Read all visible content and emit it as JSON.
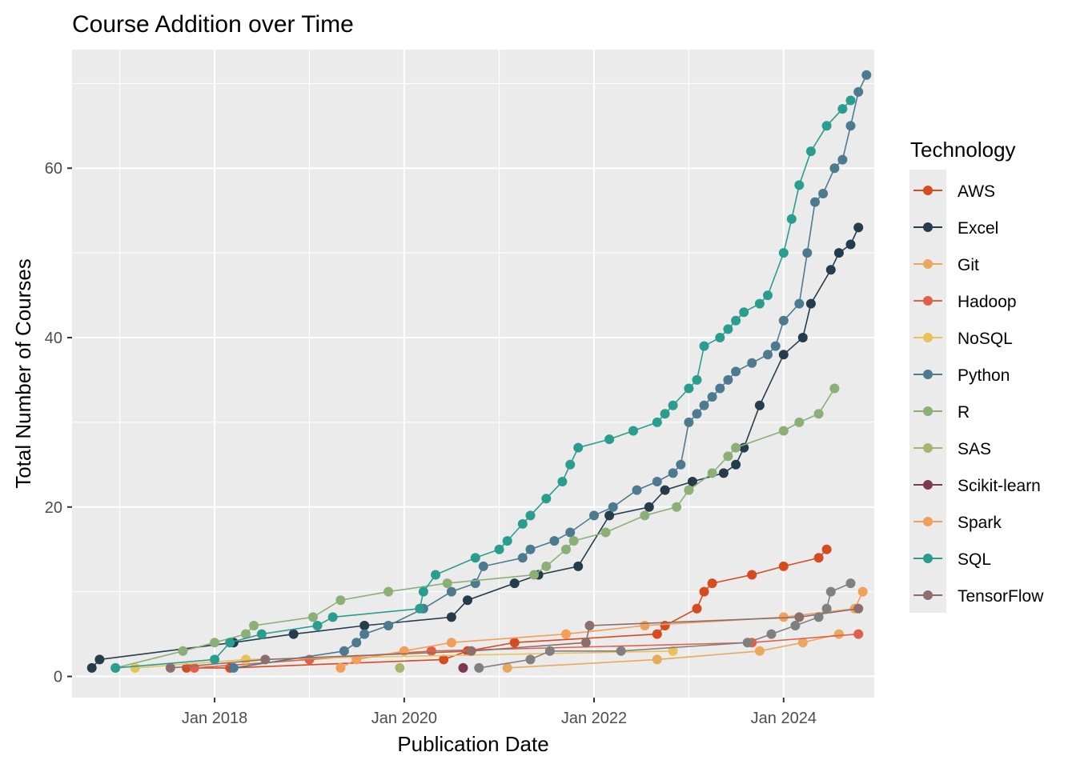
{
  "chart_data": {
    "type": "line",
    "title": "Course Addition over Time",
    "xlabel": "Publication Date",
    "ylabel": "Total Number of Courses",
    "x_axis_type": "date",
    "xlim": [
      "2016-07-01",
      "2024-12-15"
    ],
    "ylim": [
      -2.5,
      74
    ],
    "x_ticks": [
      {
        "date": "2018-01-01",
        "label": "Jan 2018"
      },
      {
        "date": "2020-01-01",
        "label": "Jan 2020"
      },
      {
        "date": "2022-01-01",
        "label": "Jan 2022"
      },
      {
        "date": "2024-01-01",
        "label": "Jan 2024"
      }
    ],
    "x_minor_ticks": [
      "2017-01-01",
      "2019-01-01",
      "2021-01-01",
      "2023-01-01",
      "2025-01-01"
    ],
    "y_ticks": [
      0,
      20,
      40,
      60
    ],
    "y_minor_ticks": [
      10,
      30,
      50,
      70
    ],
    "grid": true,
    "legend_position": "right",
    "legend_title": "Technology",
    "series": [
      {
        "name": "AWS",
        "color": "#D64B1F",
        "points": [
          [
            "2017-09-15",
            1
          ],
          [
            "2018-03-01",
            1
          ],
          [
            "2020-06-01",
            2
          ],
          [
            "2020-09-01",
            3
          ],
          [
            "2021-03-01",
            4
          ],
          [
            "2022-09-01",
            5
          ],
          [
            "2022-10-01",
            6
          ],
          [
            "2023-02-01",
            8
          ],
          [
            "2023-03-01",
            10
          ],
          [
            "2023-04-01",
            11
          ],
          [
            "2023-09-01",
            12
          ],
          [
            "2024-01-01",
            13
          ],
          [
            "2024-05-15",
            14
          ],
          [
            "2024-06-15",
            15
          ]
        ]
      },
      {
        "name": "Excel",
        "color": "#243C4C",
        "points": [
          [
            "2016-09-15",
            1
          ],
          [
            "2016-10-15",
            2
          ],
          [
            "2018-03-15",
            4
          ],
          [
            "2018-11-01",
            5
          ],
          [
            "2019-08-01",
            6
          ],
          [
            "2020-07-01",
            7
          ],
          [
            "2020-09-01",
            9
          ],
          [
            "2021-03-01",
            11
          ],
          [
            "2021-06-01",
            12
          ],
          [
            "2021-11-01",
            13
          ],
          [
            "2022-03-01",
            19
          ],
          [
            "2022-08-01",
            20
          ],
          [
            "2022-10-01",
            22
          ],
          [
            "2023-01-15",
            23
          ],
          [
            "2023-05-15",
            24
          ],
          [
            "2023-07-01",
            25
          ],
          [
            "2023-08-01",
            27
          ],
          [
            "2023-10-01",
            32
          ],
          [
            "2024-01-01",
            38
          ],
          [
            "2024-03-15",
            40
          ],
          [
            "2024-04-15",
            44
          ],
          [
            "2024-07-01",
            48
          ],
          [
            "2024-08-01",
            50
          ],
          [
            "2024-09-15",
            51
          ],
          [
            "2024-10-15",
            53
          ]
        ]
      },
      {
        "name": "Git",
        "color": "#E8A85E",
        "points": [
          [
            "2021-02-01",
            1
          ],
          [
            "2022-09-01",
            2
          ],
          [
            "2023-10-01",
            3
          ],
          [
            "2024-03-15",
            4
          ],
          [
            "2024-08-01",
            5
          ]
        ]
      },
      {
        "name": "Hadoop",
        "color": "#E0604A",
        "points": [
          [
            "2017-10-15",
            1
          ],
          [
            "2019-01-01",
            2
          ],
          [
            "2020-04-15",
            3
          ],
          [
            "2023-09-01",
            4
          ],
          [
            "2024-10-15",
            5
          ]
        ]
      },
      {
        "name": "NoSQL",
        "color": "#EAC058",
        "points": [
          [
            "2017-03-01",
            1
          ],
          [
            "2018-05-01",
            2
          ],
          [
            "2022-11-01",
            3
          ]
        ]
      },
      {
        "name": "Python",
        "color": "#4E7A90",
        "points": [
          [
            "2018-03-15",
            1
          ],
          [
            "2019-05-15",
            3
          ],
          [
            "2019-07-01",
            4
          ],
          [
            "2019-08-01",
            5
          ],
          [
            "2019-11-01",
            6
          ],
          [
            "2020-03-15",
            8
          ],
          [
            "2020-07-01",
            10
          ],
          [
            "2020-10-01",
            11
          ],
          [
            "2020-11-01",
            13
          ],
          [
            "2021-04-01",
            14
          ],
          [
            "2021-05-01",
            15
          ],
          [
            "2021-08-01",
            16
          ],
          [
            "2021-10-01",
            17
          ],
          [
            "2022-01-01",
            19
          ],
          [
            "2022-03-15",
            20
          ],
          [
            "2022-06-15",
            22
          ],
          [
            "2022-09-01",
            23
          ],
          [
            "2022-11-01",
            24
          ],
          [
            "2022-12-01",
            25
          ],
          [
            "2023-01-01",
            30
          ],
          [
            "2023-02-01",
            31
          ],
          [
            "2023-03-01",
            32
          ],
          [
            "2023-04-01",
            33
          ],
          [
            "2023-05-01",
            34
          ],
          [
            "2023-06-01",
            35
          ],
          [
            "2023-07-01",
            36
          ],
          [
            "2023-09-01",
            37
          ],
          [
            "2023-11-01",
            38
          ],
          [
            "2023-12-01",
            39
          ],
          [
            "2024-01-01",
            42
          ],
          [
            "2024-03-01",
            44
          ],
          [
            "2024-04-01",
            50
          ],
          [
            "2024-05-01",
            56
          ],
          [
            "2024-06-01",
            57
          ],
          [
            "2024-07-15",
            60
          ],
          [
            "2024-08-15",
            61
          ],
          [
            "2024-09-15",
            65
          ],
          [
            "2024-10-15",
            69
          ],
          [
            "2024-11-15",
            71
          ]
        ]
      },
      {
        "name": "R",
        "color": "#8CAF78",
        "points": [
          [
            "2016-12-15",
            1
          ],
          [
            "2017-09-01",
            3
          ],
          [
            "2018-01-01",
            4
          ],
          [
            "2018-05-01",
            5
          ],
          [
            "2018-06-01",
            6
          ],
          [
            "2019-01-15",
            7
          ],
          [
            "2019-05-01",
            9
          ],
          [
            "2019-11-01",
            10
          ],
          [
            "2020-06-15",
            11
          ],
          [
            "2021-05-15",
            12
          ],
          [
            "2021-07-01",
            13
          ],
          [
            "2021-09-15",
            15
          ],
          [
            "2021-10-15",
            16
          ],
          [
            "2022-02-15",
            17
          ],
          [
            "2022-07-15",
            19
          ],
          [
            "2022-11-15",
            20
          ],
          [
            "2023-01-01",
            22
          ],
          [
            "2023-04-01",
            24
          ],
          [
            "2023-06-01",
            26
          ],
          [
            "2023-07-01",
            27
          ],
          [
            "2024-01-01",
            29
          ],
          [
            "2024-03-01",
            30
          ],
          [
            "2024-05-15",
            31
          ],
          [
            "2024-07-15",
            34
          ]
        ]
      },
      {
        "name": "SAS",
        "color": "#A9B56E",
        "points": [
          [
            "2019-12-15",
            1
          ]
        ]
      },
      {
        "name": "Scikit-learn",
        "color": "#7B3A52",
        "points": [
          [
            "2020-08-15",
            1
          ]
        ]
      },
      {
        "name": "Spark",
        "color": "#F0A05B",
        "points": [
          [
            "2019-05-01",
            1
          ],
          [
            "2019-07-01",
            2
          ],
          [
            "2020-01-01",
            3
          ],
          [
            "2020-07-01",
            4
          ],
          [
            "2021-09-15",
            5
          ],
          [
            "2022-07-15",
            6
          ],
          [
            "2024-01-01",
            7
          ],
          [
            "2024-10-01",
            8
          ],
          [
            "2024-11-01",
            10
          ]
        ]
      },
      {
        "name": "SQL",
        "color": "#2A9D8F",
        "points": [
          [
            "2016-12-15",
            1
          ],
          [
            "2018-01-01",
            2
          ],
          [
            "2018-03-01",
            4
          ],
          [
            "2018-07-01",
            5
          ],
          [
            "2019-02-01",
            6
          ],
          [
            "2019-04-01",
            7
          ],
          [
            "2020-03-01",
            8
          ],
          [
            "2020-03-15",
            10
          ],
          [
            "2020-05-01",
            12
          ],
          [
            "2020-10-01",
            14
          ],
          [
            "2021-01-01",
            15
          ],
          [
            "2021-02-01",
            16
          ],
          [
            "2021-04-01",
            18
          ],
          [
            "2021-05-01",
            19
          ],
          [
            "2021-07-01",
            21
          ],
          [
            "2021-09-01",
            23
          ],
          [
            "2021-10-01",
            25
          ],
          [
            "2021-11-01",
            27
          ],
          [
            "2022-03-01",
            28
          ],
          [
            "2022-06-01",
            29
          ],
          [
            "2022-09-01",
            30
          ],
          [
            "2022-10-01",
            31
          ],
          [
            "2022-11-01",
            32
          ],
          [
            "2023-01-01",
            34
          ],
          [
            "2023-02-01",
            35
          ],
          [
            "2023-03-01",
            39
          ],
          [
            "2023-05-01",
            40
          ],
          [
            "2023-06-01",
            41
          ],
          [
            "2023-07-01",
            42
          ],
          [
            "2023-08-01",
            43
          ],
          [
            "2023-10-01",
            44
          ],
          [
            "2023-11-01",
            45
          ],
          [
            "2024-01-01",
            50
          ],
          [
            "2024-02-01",
            54
          ],
          [
            "2024-03-01",
            58
          ],
          [
            "2024-04-15",
            62
          ],
          [
            "2024-06-15",
            65
          ],
          [
            "2024-08-15",
            67
          ],
          [
            "2024-09-15",
            68
          ]
        ]
      },
      {
        "name": "TensorFlow",
        "color": "#8C6E6B",
        "points": [
          [
            "2017-07-15",
            1
          ],
          [
            "2018-07-15",
            2
          ],
          [
            "2020-09-15",
            3
          ],
          [
            "2021-12-01",
            4
          ],
          [
            "2021-12-15",
            6
          ],
          [
            "2024-03-01",
            7
          ],
          [
            "2024-10-15",
            8
          ]
        ]
      },
      {
        "name": "",
        "color": "#808080",
        "points": [
          [
            "2020-10-15",
            1
          ],
          [
            "2021-05-01",
            2
          ],
          [
            "2021-07-15",
            3
          ],
          [
            "2022-04-15",
            3
          ],
          [
            "2023-08-15",
            4
          ],
          [
            "2023-11-15",
            5
          ],
          [
            "2024-02-15",
            6
          ],
          [
            "2024-05-15",
            7
          ],
          [
            "2024-06-15",
            8
          ],
          [
            "2024-07-01",
            10
          ],
          [
            "2024-09-15",
            11
          ]
        ]
      }
    ]
  }
}
